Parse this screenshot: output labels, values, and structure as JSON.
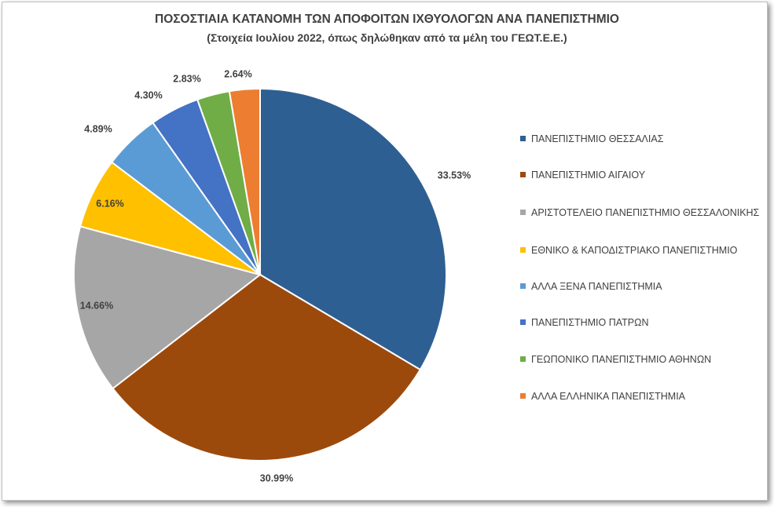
{
  "chart_data": {
    "type": "pie",
    "title": "ΠΟΣΟΣΤΙΑΙΑ ΚΑΤΑΝΟΜΗ ΤΩΝ ΑΠΟΦΟΙΤΩΝ ΙΧΘΥΟΛΟΓΩΝ ΑΝΑ ΠΑΝΕΠΙΣΤΗΜΙΟ",
    "subtitle": "(Στοιχεία Ιουλίου 2022, όπως δηλώθηκαν από τα μέλη του ΓΕΩΤ.Ε.Ε.)",
    "legend_position": "right",
    "slices": [
      {
        "label": "ΠΑΝΕΠΙΣΤΗΜΙΟ ΘΕΣΣΑΛΙΑΣ",
        "value": 33.53,
        "display": "33.53%",
        "color": "#2e5f92"
      },
      {
        "label": "ΠΑΝΕΠΙΣΤΗΜΙΟ ΑΙΓΑΙΟΥ",
        "value": 30.99,
        "display": "30.99%",
        "color": "#9c4a0c"
      },
      {
        "label": "ΑΡΙΣΤΟΤΕΛΕΙΟ ΠΑΝΕΠΙΣΤΗΜΙΟ ΘΕΣΣΑΛΟΝΙΚΗΣ",
        "value": 14.66,
        "display": "14.66%",
        "color": "#a6a6a6"
      },
      {
        "label": "ΕΘΝΙΚΟ & ΚΑΠΟΔΙΣΤΡΙΑΚΟ ΠΑΝΕΠΙΣΤΗΜΙΟ",
        "value": 6.16,
        "display": "6.16%",
        "color": "#ffc000"
      },
      {
        "label": "ΑΛΛΑ ΞΕΝΑ ΠΑΝΕΠΙΣΤΗΜΙΑ",
        "value": 4.89,
        "display": "4.89%",
        "color": "#5b9bd5"
      },
      {
        "label": "ΠΑΝΕΠΙΣΤΗΜΙΟ ΠΑΤΡΩΝ",
        "value": 4.3,
        "display": "4.30%",
        "color": "#4472c4"
      },
      {
        "label": "ΓΕΩΠΟΝΙΚΟ ΠΑΝΕΠΙΣΤΗΜΙΟ ΑΘΗΝΩΝ",
        "value": 2.83,
        "display": "2.83%",
        "color": "#70ad47"
      },
      {
        "label": "ΑΛΛΑ ΕΛΛΗΝΙΚΑ ΠΑΝΕΠΙΣΤΗΜΙΑ",
        "value": 2.64,
        "display": "2.64%",
        "color": "#ed7d31"
      }
    ]
  }
}
